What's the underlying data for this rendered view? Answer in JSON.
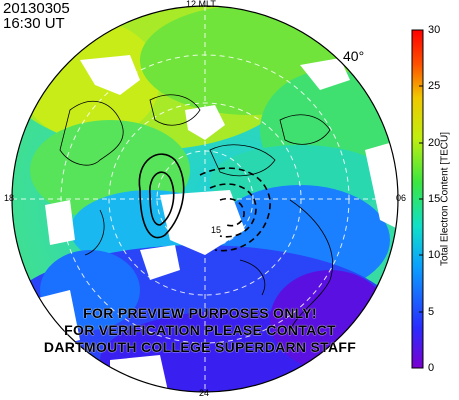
{
  "header": {
    "date": "20130305",
    "time": "16:30 UT"
  },
  "map": {
    "latitude_label": "40°",
    "mlt_labels": {
      "top": "12 MLT",
      "left": "18",
      "right": "06",
      "bottom": "24"
    },
    "contour_label": "15"
  },
  "watermark": {
    "lines": [
      "FOR PREVIEW PURPOSES ONLY!",
      "FOR VERIFICATION PLEASE CONTACT",
      "DARTMOUTH COLLEGE SUPERDARN STAFF"
    ]
  },
  "colorbar": {
    "label": "Total Electron Content [TECU]",
    "ticks": [
      "30",
      "25",
      "20",
      "15",
      "10",
      "5",
      "0"
    ],
    "min": 0,
    "max": 30,
    "colors": [
      "#7a00d0",
      "#2a2cff",
      "#0aa0ff",
      "#10e0c8",
      "#3ce640",
      "#c0ee10",
      "#f0c800",
      "#ff5000",
      "#ff0000"
    ]
  }
}
